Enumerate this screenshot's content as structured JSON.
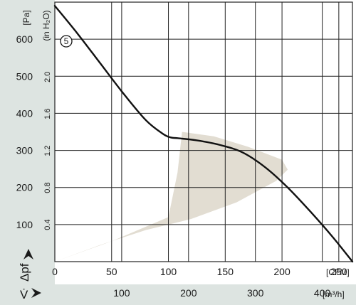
{
  "chart_data": {
    "type": "line",
    "y_axis_label": "Δpf",
    "y_unit": "[Pa]",
    "y_ticks": [
      100,
      200,
      300,
      400,
      500,
      600
    ],
    "y2_unit": "(in H₂O)",
    "y2_ticks": [
      "0.4",
      "0.8",
      "1.2",
      "1.6",
      "2.0"
    ],
    "x_axis_label": "V̇",
    "x_unit": "[CFM]",
    "x_ticks": [
      0,
      50,
      100,
      150,
      200,
      250
    ],
    "x2_unit": "[m³/h]",
    "x2_ticks": [
      100,
      200,
      300,
      400
    ],
    "xlim": [
      0,
      262
    ],
    "ylim": [
      0,
      700
    ],
    "grid": true,
    "series": [
      {
        "name": "5",
        "color": "#111111",
        "x": [
          0,
          20,
          40,
          60,
          80,
          95,
          102,
          108,
          125,
          145,
          165,
          185,
          205,
          225,
          245,
          262
        ],
        "y": [
          690,
          615,
          535,
          455,
          382,
          345,
          335,
          333,
          327,
          315,
          295,
          255,
          200,
          135,
          65,
          0
        ]
      }
    ],
    "operating_region": {
      "color": "#e2ddd2",
      "x": [
        0,
        50,
        100,
        108,
        112,
        140,
        170,
        200,
        205,
        195,
        160,
        120,
        80,
        40,
        0
      ],
      "y": [
        0,
        55,
        120,
        240,
        350,
        338,
        310,
        275,
        248,
        218,
        160,
        115,
        85,
        45,
        0
      ]
    },
    "background": "#dde4e1"
  }
}
